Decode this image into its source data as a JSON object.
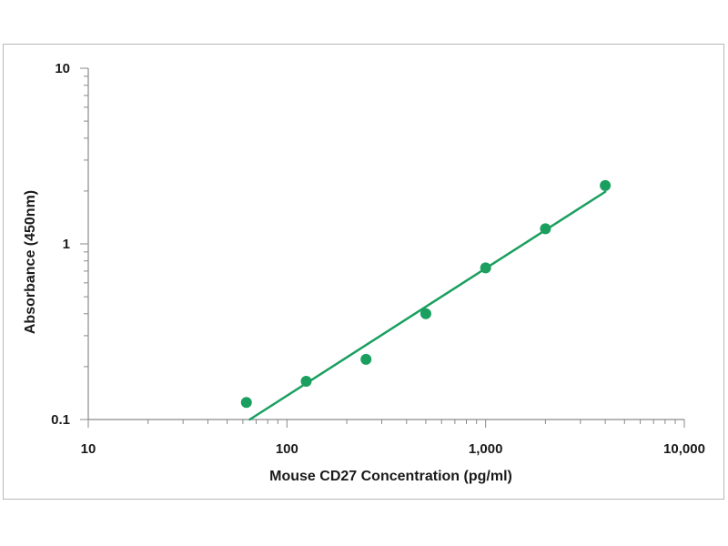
{
  "chart_data": {
    "type": "scatter",
    "title": "",
    "xlabel": "Mouse CD27 Concentration (pg/ml)",
    "ylabel": "Absorbance (450nm)",
    "x_scale": "log",
    "y_scale": "log",
    "xlim": [
      10,
      10000
    ],
    "ylim": [
      0.1,
      10
    ],
    "x_ticks": [
      {
        "value": 10,
        "label": "10"
      },
      {
        "value": 100,
        "label": "100"
      },
      {
        "value": 1000,
        "label": "1,000"
      },
      {
        "value": 10000,
        "label": "10,000"
      }
    ],
    "y_ticks": [
      {
        "value": 0.1,
        "label": "0.1"
      },
      {
        "value": 1,
        "label": "1"
      },
      {
        "value": 10,
        "label": "10"
      }
    ],
    "grid": false,
    "legend": "none",
    "series": [
      {
        "x": [
          62.5,
          125,
          250,
          500,
          1000,
          2000,
          4000
        ],
        "y": [
          0.125,
          0.165,
          0.22,
          0.4,
          0.73,
          1.22,
          2.15
        ],
        "color": "#1a9f5f"
      }
    ],
    "fit_line": {
      "x": [
        65,
        4000
      ],
      "y": [
        0.1,
        1.98
      ],
      "color": "#1a9f5f"
    }
  }
}
